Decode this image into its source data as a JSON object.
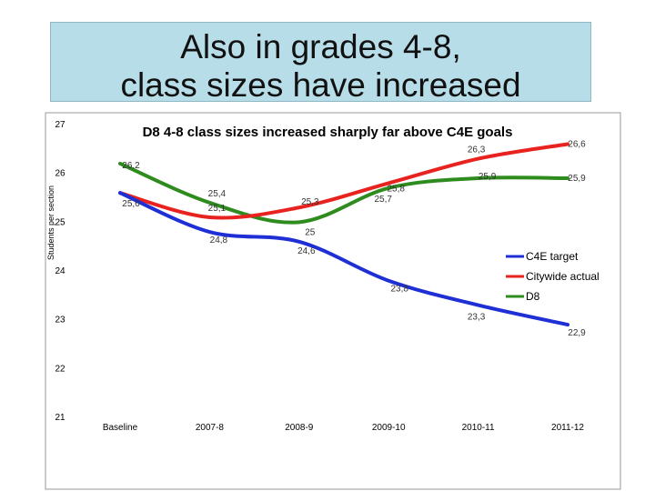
{
  "slide": {
    "title_line1": "Also in grades 4-8,",
    "title_line2": "class sizes have increased"
  },
  "chart_data": {
    "type": "line",
    "title": "D8 4-8 class sizes increased sharply far above C4E goals",
    "xlabel": "",
    "ylabel": "Students per section",
    "ylim": [
      21,
      27
    ],
    "yticks": [
      "21",
      "22",
      "23",
      "24",
      "25",
      "26",
      "27"
    ],
    "categories": [
      "Baseline",
      "2007-8",
      "2008-9",
      "2009-10",
      "2010-11",
      "2011-12"
    ],
    "grid": false,
    "legend_position": "right",
    "series": [
      {
        "name": "C4E target",
        "color": "#1f2fd6",
        "values": [
          25.6,
          24.8,
          24.6,
          23.8,
          23.3,
          22.9
        ],
        "labels": [
          "25,6",
          "24,8",
          "24,6",
          "23,8",
          "23,3",
          "22,9"
        ]
      },
      {
        "name": "Citywide actual",
        "color": "#e8231f",
        "values": [
          25.6,
          25.1,
          25.3,
          25.8,
          26.3,
          26.6
        ],
        "labels": [
          "",
          "25,1",
          "25,3",
          "25,8",
          "26,3",
          "26,6"
        ]
      },
      {
        "name": "D8",
        "color": "#2e8b1e",
        "values": [
          26.2,
          25.4,
          25.0,
          25.7,
          25.9,
          25.9
        ],
        "labels": [
          "26,2",
          "25,4",
          "25",
          "25,7",
          "25,9",
          "25,9"
        ]
      }
    ]
  }
}
